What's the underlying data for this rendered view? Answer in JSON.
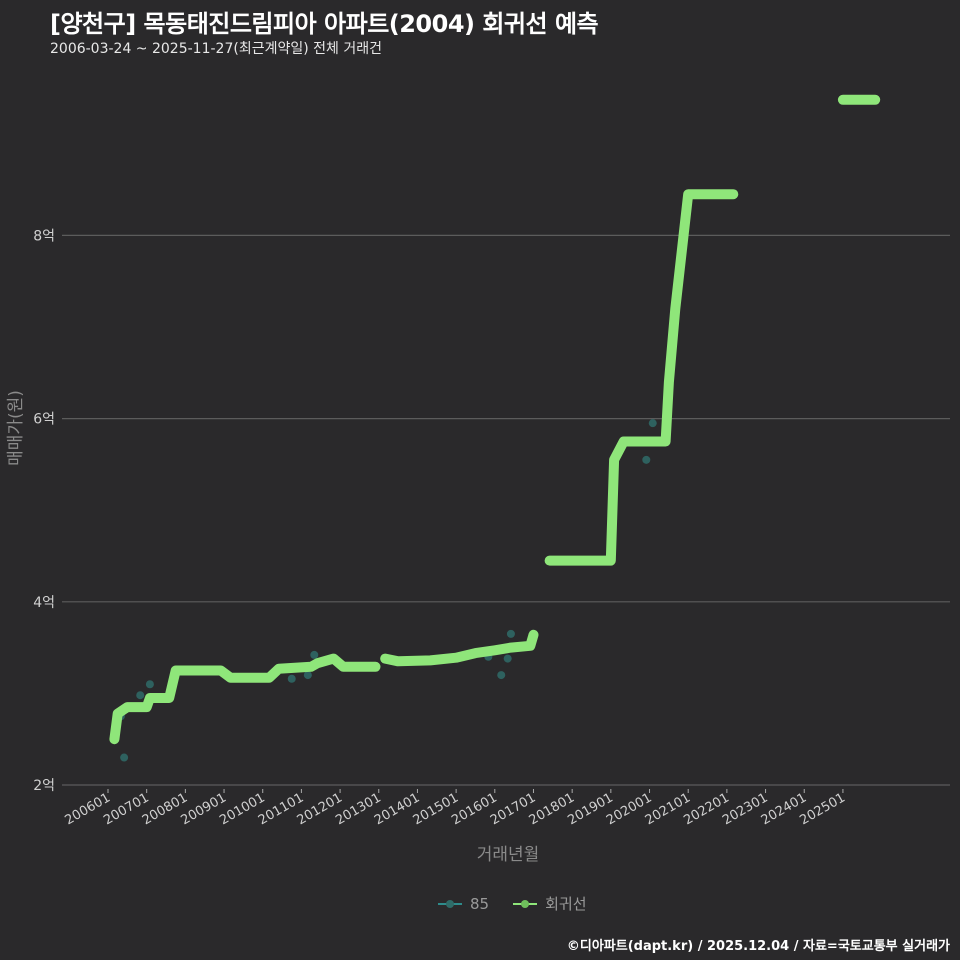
{
  "header": {
    "title": "[양천구] 목동태진드림피아 아파트(2004) 회귀선 예측",
    "subtitle": "2006-03-24 ~ 2025-11-27(최근계약일) 전체 거래건"
  },
  "footer": {
    "credit": "©디아파트(dapt.kr) / 2025.12.04 / 자료=국토교통부 실거래가"
  },
  "legend": {
    "items": [
      {
        "label": "85",
        "color": "#2e8b8b"
      },
      {
        "label": "회귀선",
        "color": "#8fe67a"
      }
    ]
  },
  "colors": {
    "background": "#2a292b",
    "grid": "#5c5c5c",
    "regression": "#8fe67a",
    "points": "#2f6b68"
  },
  "chart_data": {
    "type": "line",
    "title": "[양천구] 목동태진드림피아 아파트(2004) 회귀선 예측",
    "subtitle": "2006-03-24 ~ 2025-11-27(최근계약일) 전체 거래건",
    "xlabel": "거래년월",
    "ylabel": "매매가(원)",
    "x_ticks": [
      "200601",
      "200701",
      "200801",
      "200901",
      "201001",
      "201101",
      "201201",
      "201301",
      "201401",
      "201501",
      "201601",
      "201701",
      "201801",
      "201901",
      "202001",
      "202101",
      "202201",
      "202301",
      "202401",
      "202501"
    ],
    "y_ticks": [
      "2억",
      "4억",
      "6억",
      "8억"
    ],
    "ylim_eok": [
      2,
      9.7
    ],
    "grid": {
      "horizontal": true,
      "vertical": false
    },
    "legend_position": "bottom",
    "series": [
      {
        "name": "회귀선",
        "unit": "억원",
        "segments": [
          [
            {
              "x": "2006-03",
              "y": 2.5
            },
            {
              "x": "2006-04",
              "y": 2.78
            },
            {
              "x": "2006-07",
              "y": 2.85
            },
            {
              "x": "2007-01",
              "y": 2.85
            },
            {
              "x": "2007-02",
              "y": 2.95
            },
            {
              "x": "2007-08",
              "y": 2.95
            },
            {
              "x": "2007-10",
              "y": 3.25
            },
            {
              "x": "2008-12",
              "y": 3.25
            },
            {
              "x": "2009-03",
              "y": 3.17
            },
            {
              "x": "2010-03",
              "y": 3.17
            },
            {
              "x": "2010-06",
              "y": 3.27
            },
            {
              "x": "2011-04",
              "y": 3.29
            },
            {
              "x": "2011-06",
              "y": 3.33
            },
            {
              "x": "2011-11",
              "y": 3.38
            },
            {
              "x": "2012-02",
              "y": 3.29
            },
            {
              "x": "2012-12",
              "y": 3.29
            }
          ],
          [
            {
              "x": "2013-03",
              "y": 3.38
            },
            {
              "x": "2013-07",
              "y": 3.35
            },
            {
              "x": "2014-05",
              "y": 3.36
            },
            {
              "x": "2015-01",
              "y": 3.39
            },
            {
              "x": "2015-07",
              "y": 3.44
            },
            {
              "x": "2016-01",
              "y": 3.47
            },
            {
              "x": "2016-06",
              "y": 3.5
            },
            {
              "x": "2016-12",
              "y": 3.52
            },
            {
              "x": "2017-01",
              "y": 3.64
            }
          ],
          [
            {
              "x": "2017-06",
              "y": 4.45
            },
            {
              "x": "2019-01",
              "y": 4.45
            },
            {
              "x": "2019-02",
              "y": 5.55
            },
            {
              "x": "2019-05",
              "y": 5.75
            },
            {
              "x": "2020-06",
              "y": 5.75
            },
            {
              "x": "2020-07",
              "y": 6.4
            },
            {
              "x": "2020-09",
              "y": 7.2
            },
            {
              "x": "2021-01",
              "y": 8.45
            },
            {
              "x": "2022-03",
              "y": 8.45
            }
          ],
          [
            {
              "x": "2025-01",
              "y": 9.48
            },
            {
              "x": "2025-11",
              "y": 9.48
            }
          ]
        ]
      },
      {
        "name": "85",
        "unit": "억원",
        "type": "scatter",
        "points": [
          {
            "x": "2006-06",
            "y": 2.3
          },
          {
            "x": "2006-05",
            "y": 2.75
          },
          {
            "x": "2006-11",
            "y": 2.98
          },
          {
            "x": "2007-02",
            "y": 3.1
          },
          {
            "x": "2010-10",
            "y": 3.16
          },
          {
            "x": "2011-03",
            "y": 3.2
          },
          {
            "x": "2011-05",
            "y": 3.42
          },
          {
            "x": "2015-11",
            "y": 3.4
          },
          {
            "x": "2016-03",
            "y": 3.2
          },
          {
            "x": "2016-05",
            "y": 3.38
          },
          {
            "x": "2016-06",
            "y": 3.65
          },
          {
            "x": "2019-12",
            "y": 5.55
          },
          {
            "x": "2020-02",
            "y": 5.95
          }
        ]
      }
    ]
  }
}
